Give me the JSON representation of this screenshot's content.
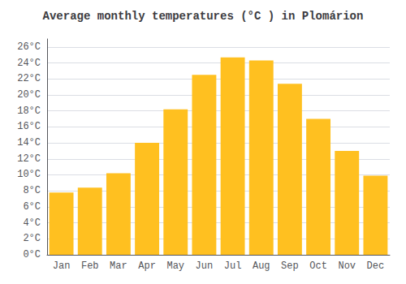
{
  "chart_data": {
    "type": "bar",
    "title": "Average monthly temperatures (°C ) in Plomárion",
    "categories": [
      "Jan",
      "Feb",
      "Mar",
      "Apr",
      "May",
      "Jun",
      "Jul",
      "Aug",
      "Sep",
      "Oct",
      "Nov",
      "Dec"
    ],
    "values": [
      7.8,
      8.4,
      10.2,
      14.0,
      18.2,
      22.5,
      24.7,
      24.3,
      21.4,
      17.0,
      13.0,
      9.9
    ],
    "color": "#FFC020",
    "ylim": [
      0,
      27
    ],
    "yticks": [
      {
        "value": 0,
        "label": "0°C"
      },
      {
        "value": 2,
        "label": "2°C"
      },
      {
        "value": 4,
        "label": "4°C"
      },
      {
        "value": 6,
        "label": "6°C"
      },
      {
        "value": 8,
        "label": "8°C"
      },
      {
        "value": 10,
        "label": "10°C"
      },
      {
        "value": 12,
        "label": "12°C"
      },
      {
        "value": 14,
        "label": "14°C"
      },
      {
        "value": 16,
        "label": "16°C"
      },
      {
        "value": 18,
        "label": "18°C"
      },
      {
        "value": 20,
        "label": "20°C"
      },
      {
        "value": 22,
        "label": "22°C"
      },
      {
        "value": 24,
        "label": "24°C"
      },
      {
        "value": 26,
        "label": "26°C"
      }
    ],
    "grid": true
  }
}
